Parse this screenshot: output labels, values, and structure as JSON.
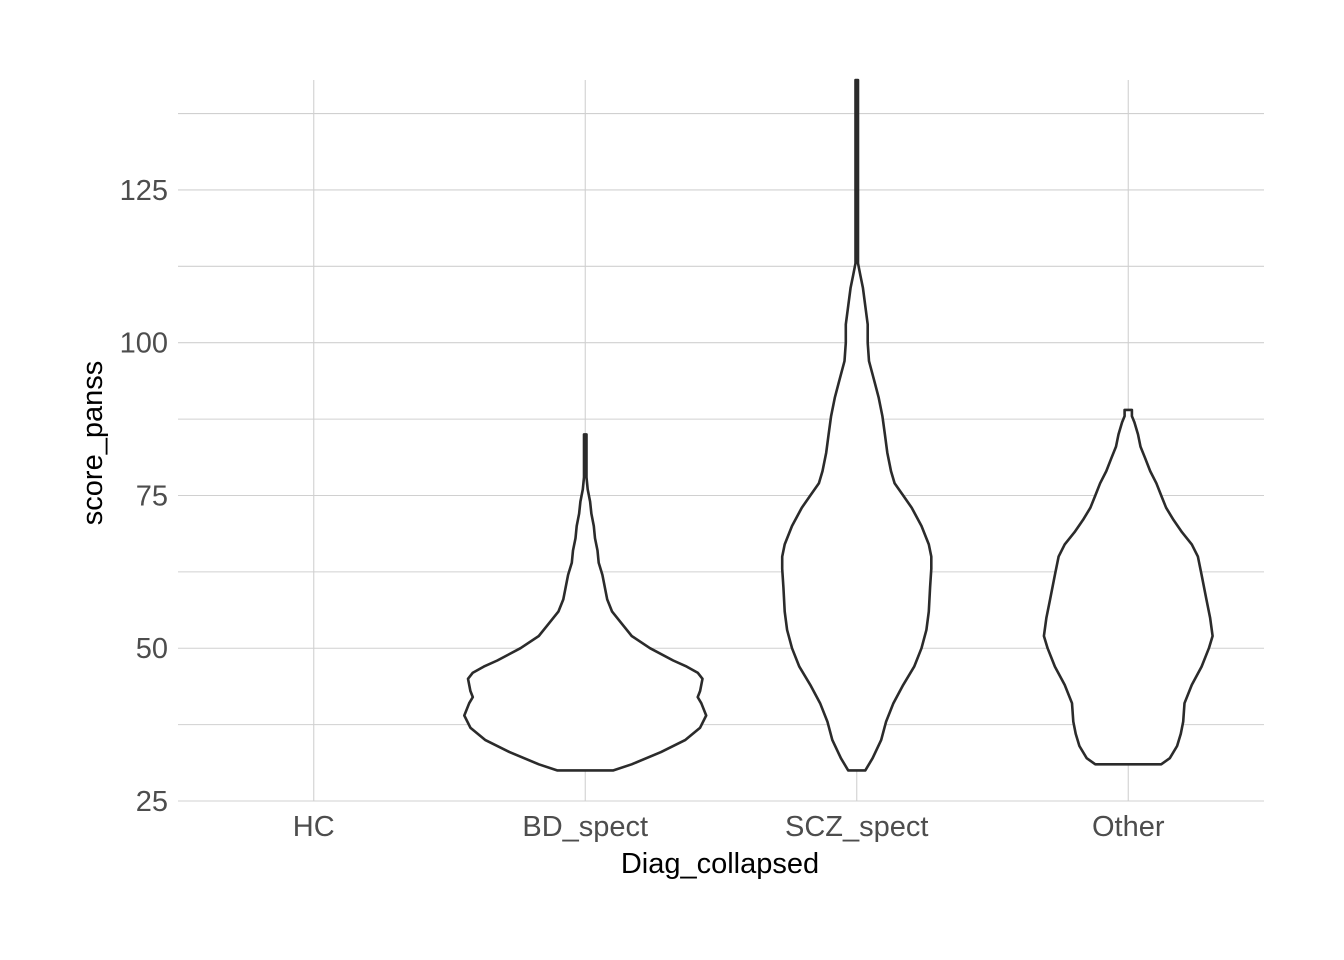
{
  "chart_data": {
    "type": "violin",
    "xlabel": "Diag_collapsed",
    "ylabel": "score_panss",
    "categories": [
      "HC",
      "BD_spect",
      "SCZ_spect",
      "Other"
    ],
    "ylim": [
      25,
      143
    ],
    "y_ticks": [
      25,
      50,
      75,
      100,
      125
    ],
    "y_tick_labels": [
      "25",
      "50",
      "75",
      "100",
      "125"
    ],
    "grid": true,
    "legend": "none",
    "line_color": "#2b2b2b",
    "fill_color": "#ffffff",
    "violins": [
      {
        "category": "HC",
        "range": null,
        "profile": []
      },
      {
        "category": "BD_spect",
        "range": [
          30,
          85
        ],
        "profile": [
          [
            30,
            0.23
          ],
          [
            31,
            0.38
          ],
          [
            33,
            0.62
          ],
          [
            35,
            0.82
          ],
          [
            37,
            0.94
          ],
          [
            39,
            0.99
          ],
          [
            41,
            0.95
          ],
          [
            42,
            0.92
          ],
          [
            43,
            0.94
          ],
          [
            45,
            0.96
          ],
          [
            46,
            0.92
          ],
          [
            47,
            0.83
          ],
          [
            48,
            0.72
          ],
          [
            50,
            0.53
          ],
          [
            52,
            0.38
          ],
          [
            54,
            0.3
          ],
          [
            56,
            0.22
          ],
          [
            58,
            0.18
          ],
          [
            60,
            0.16
          ],
          [
            62,
            0.14
          ],
          [
            64,
            0.11
          ],
          [
            66,
            0.1
          ],
          [
            68,
            0.08
          ],
          [
            70,
            0.07
          ],
          [
            72,
            0.05
          ],
          [
            74,
            0.04
          ],
          [
            76,
            0.02
          ],
          [
            78,
            0.01
          ],
          [
            80,
            0.0
          ],
          [
            85,
            0.0
          ]
        ]
      },
      {
        "category": "SCZ_spect",
        "range": [
          30,
          143
        ],
        "profile": [
          [
            30,
            0.07
          ],
          [
            32,
            0.13
          ],
          [
            35,
            0.2
          ],
          [
            38,
            0.24
          ],
          [
            41,
            0.3
          ],
          [
            44,
            0.38
          ],
          [
            47,
            0.47
          ],
          [
            50,
            0.53
          ],
          [
            53,
            0.57
          ],
          [
            56,
            0.59
          ],
          [
            60,
            0.6
          ],
          [
            63,
            0.61
          ],
          [
            65,
            0.61
          ],
          [
            67,
            0.59
          ],
          [
            70,
            0.53
          ],
          [
            73,
            0.45
          ],
          [
            75,
            0.38
          ],
          [
            77,
            0.31
          ],
          [
            79,
            0.28
          ],
          [
            82,
            0.25
          ],
          [
            85,
            0.23
          ],
          [
            88,
            0.21
          ],
          [
            91,
            0.18
          ],
          [
            94,
            0.14
          ],
          [
            97,
            0.1
          ],
          [
            100,
            0.09
          ],
          [
            103,
            0.09
          ],
          [
            106,
            0.07
          ],
          [
            109,
            0.05
          ],
          [
            111,
            0.03
          ],
          [
            113,
            0.01
          ],
          [
            115,
            0.0
          ],
          [
            143,
            0.0
          ]
        ]
      },
      {
        "category": "Other",
        "range": [
          31,
          89
        ],
        "profile": [
          [
            31,
            0.27
          ],
          [
            32,
            0.34
          ],
          [
            34,
            0.4
          ],
          [
            36,
            0.43
          ],
          [
            38,
            0.45
          ],
          [
            41,
            0.46
          ],
          [
            44,
            0.52
          ],
          [
            47,
            0.6
          ],
          [
            50,
            0.66
          ],
          [
            52,
            0.69
          ],
          [
            55,
            0.67
          ],
          [
            58,
            0.64
          ],
          [
            62,
            0.6
          ],
          [
            65,
            0.57
          ],
          [
            67,
            0.52
          ],
          [
            69,
            0.44
          ],
          [
            71,
            0.37
          ],
          [
            73,
            0.31
          ],
          [
            75,
            0.27
          ],
          [
            77,
            0.23
          ],
          [
            79,
            0.18
          ],
          [
            81,
            0.14
          ],
          [
            83,
            0.1
          ],
          [
            85,
            0.08
          ],
          [
            87,
            0.05
          ],
          [
            88,
            0.03
          ],
          [
            89,
            0.03
          ]
        ]
      }
    ]
  }
}
